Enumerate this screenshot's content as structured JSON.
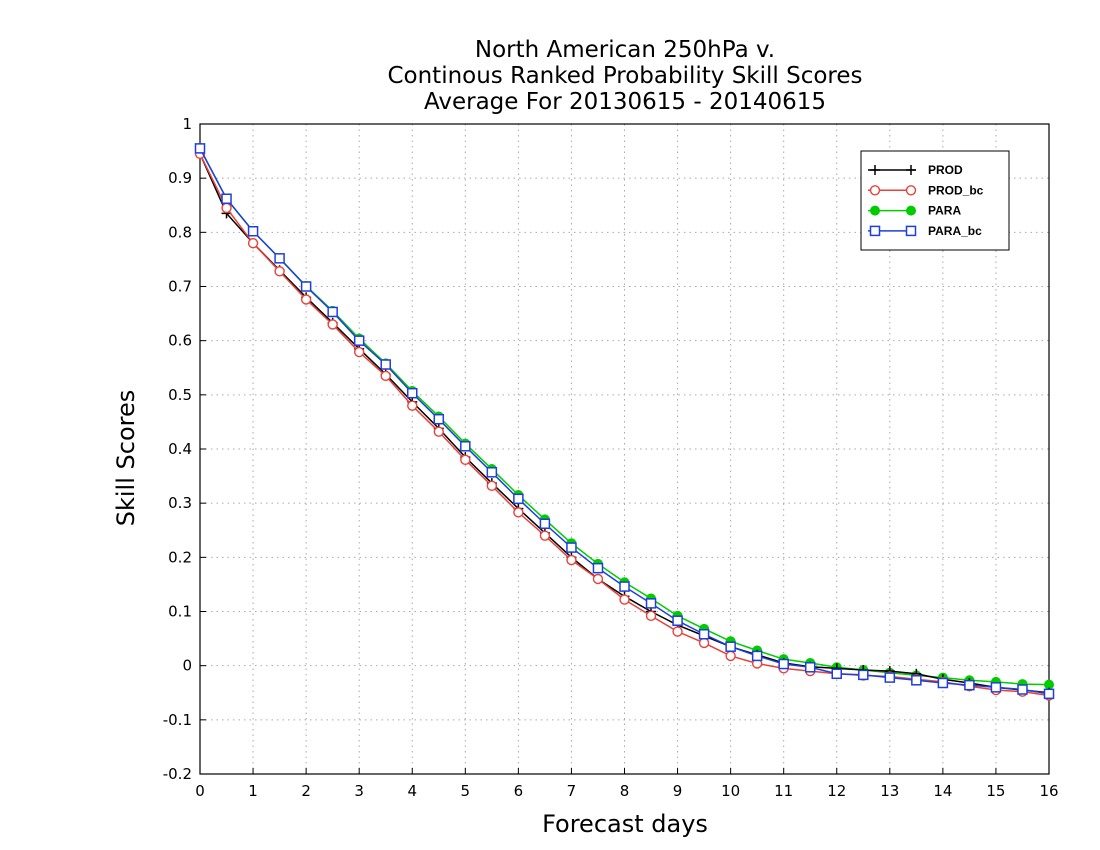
{
  "chart_data": {
    "type": "line",
    "title": [
      "North American 250hPa v.",
      "Continous Ranked Probability Skill Scores",
      "Average For 20130615 - 20140615"
    ],
    "xlabel": "Forecast days",
    "ylabel": "Skill Scores",
    "xlim": [
      0,
      16
    ],
    "ylim": [
      -0.2,
      1
    ],
    "xticks": [
      0,
      1,
      2,
      3,
      4,
      5,
      6,
      7,
      8,
      9,
      10,
      11,
      12,
      13,
      14,
      15,
      16
    ],
    "yticks": [
      -0.2,
      -0.1,
      0,
      0.1,
      0.2,
      0.3,
      0.4,
      0.5,
      0.6,
      0.7,
      0.8,
      0.9,
      1
    ],
    "ytick_labels": [
      "-0.2",
      "-0.1",
      "0",
      "0.1",
      "0.2",
      "0.3",
      "0.4",
      "0.5",
      "0.6",
      "0.7",
      "0.8",
      "0.9",
      "1"
    ],
    "grid": true,
    "legend_position": "top-right",
    "x": [
      0,
      0.5,
      1,
      1.5,
      2,
      2.5,
      3,
      3.5,
      4,
      4.5,
      5,
      5.5,
      6,
      6.5,
      7,
      7.5,
      8,
      8.5,
      9,
      9.5,
      10,
      10.5,
      11,
      11.5,
      12,
      12.5,
      13,
      13.5,
      14,
      14.5,
      15,
      15.5,
      16
    ],
    "series": [
      {
        "name": "PROD",
        "color": "#000000",
        "marker": "plus",
        "values": [
          0.945,
          0.835,
          0.78,
          0.73,
          0.68,
          0.633,
          0.585,
          0.538,
          0.487,
          0.438,
          0.385,
          0.337,
          0.29,
          0.245,
          0.2,
          0.16,
          0.128,
          0.1,
          0.075,
          0.055,
          0.035,
          0.02,
          0.005,
          -0.002,
          -0.005,
          -0.008,
          -0.01,
          -0.015,
          -0.025,
          -0.032,
          -0.04,
          -0.045,
          -0.05
        ]
      },
      {
        "name": "PROD_bc",
        "color": "#e8413a",
        "marker": "circle",
        "values": [
          0.945,
          0.845,
          0.78,
          0.728,
          0.676,
          0.63,
          0.579,
          0.535,
          0.48,
          0.432,
          0.38,
          0.332,
          0.283,
          0.24,
          0.195,
          0.16,
          0.122,
          0.092,
          0.063,
          0.042,
          0.018,
          0.004,
          -0.005,
          -0.01,
          -0.015,
          -0.018,
          -0.02,
          -0.025,
          -0.03,
          -0.038,
          -0.045,
          -0.048,
          -0.055
        ]
      },
      {
        "name": "PARA",
        "color": "#00cc00",
        "marker": "dot",
        "values": [
          0.955,
          0.862,
          0.802,
          0.752,
          0.701,
          0.655,
          0.604,
          0.558,
          0.507,
          0.46,
          0.41,
          0.363,
          0.315,
          0.27,
          0.226,
          0.188,
          0.154,
          0.124,
          0.092,
          0.068,
          0.045,
          0.028,
          0.012,
          0.005,
          -0.003,
          -0.008,
          -0.013,
          -0.018,
          -0.022,
          -0.027,
          -0.03,
          -0.034,
          -0.035
        ]
      },
      {
        "name": "PARA_bc",
        "color": "#1f3fdc",
        "marker": "square",
        "values": [
          0.955,
          0.862,
          0.802,
          0.752,
          0.7,
          0.653,
          0.6,
          0.556,
          0.503,
          0.455,
          0.405,
          0.357,
          0.308,
          0.262,
          0.218,
          0.18,
          0.146,
          0.115,
          0.083,
          0.058,
          0.035,
          0.018,
          0.003,
          -0.003,
          -0.015,
          -0.017,
          -0.022,
          -0.027,
          -0.032,
          -0.036,
          -0.04,
          -0.044,
          -0.052
        ]
      }
    ]
  }
}
